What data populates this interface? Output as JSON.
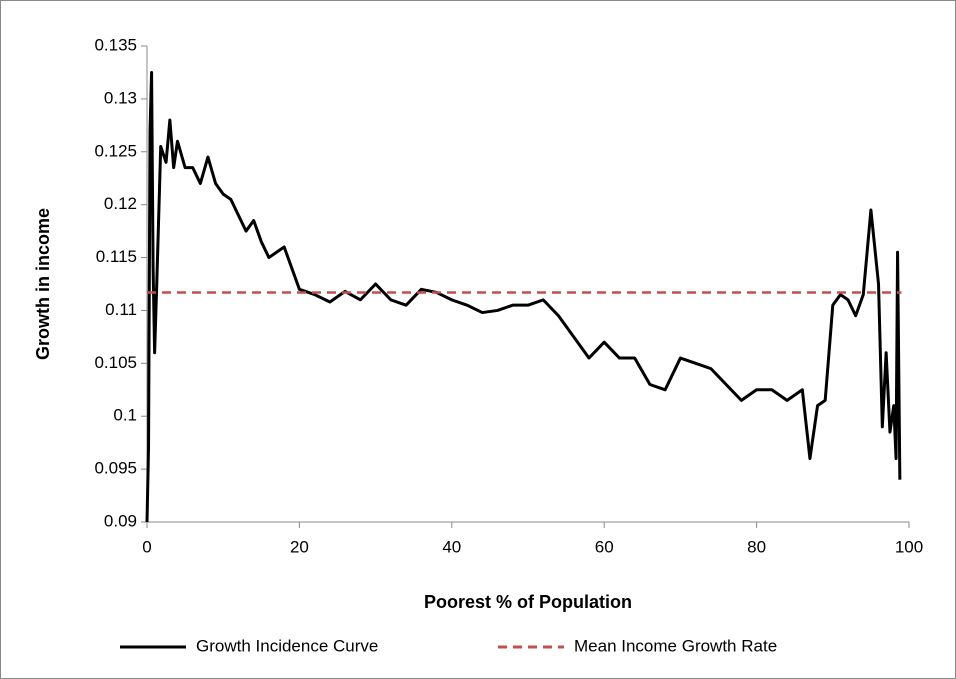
{
  "chart_data": {
    "type": "line",
    "x_label": "Poorest % of Population",
    "y_label": "Growth in income",
    "xlim": [
      0,
      100
    ],
    "xticks": [
      0,
      20,
      40,
      60,
      80,
      100
    ],
    "ylim": [
      0.09,
      0.135
    ],
    "yticks": [
      0.09,
      0.095,
      0.1,
      0.105,
      0.11,
      0.115,
      0.12,
      0.125,
      0.13,
      0.135
    ],
    "legend": "bottom",
    "series": [
      {
        "name": "Growth Incidence Curve",
        "color": "#000000",
        "style": "solid",
        "x": [
          0,
          0.2,
          0.4,
          0.6,
          0.8,
          1.0,
          1.3,
          1.8,
          2.5,
          3,
          3.5,
          4,
          5,
          6,
          7,
          8,
          9,
          10,
          11,
          12,
          13,
          14,
          15,
          16,
          17,
          18,
          19,
          20,
          22,
          24,
          26,
          28,
          30,
          32,
          34,
          36,
          38,
          40,
          42,
          44,
          46,
          48,
          50,
          52,
          54,
          56,
          58,
          60,
          62,
          64,
          66,
          68,
          70,
          72,
          74,
          76,
          78,
          80,
          82,
          84,
          86,
          87,
          88,
          89,
          90,
          91,
          92,
          93,
          94,
          95,
          96,
          96.5,
          97,
          97.5,
          98,
          98.3,
          98.5,
          98.8
        ],
        "values": [
          0.09,
          0.097,
          0.127,
          0.1325,
          0.114,
          0.106,
          0.113,
          0.1255,
          0.124,
          0.128,
          0.1235,
          0.126,
          0.1235,
          0.1235,
          0.122,
          0.1245,
          0.122,
          0.121,
          0.1205,
          0.119,
          0.1175,
          0.1185,
          0.1165,
          0.115,
          0.1155,
          0.116,
          0.114,
          0.112,
          0.1115,
          0.1108,
          0.1118,
          0.111,
          0.1125,
          0.111,
          0.1105,
          0.112,
          0.1117,
          0.111,
          0.1105,
          0.1098,
          0.11,
          0.1105,
          0.1105,
          0.111,
          0.1095,
          0.1075,
          0.1055,
          0.107,
          0.1055,
          0.1055,
          0.103,
          0.1025,
          0.1055,
          0.105,
          0.1045,
          0.103,
          0.1015,
          0.1025,
          0.1025,
          0.1015,
          0.1025,
          0.096,
          0.101,
          0.1015,
          0.1105,
          0.1115,
          0.111,
          0.1095,
          0.1115,
          0.1195,
          0.1125,
          0.099,
          0.106,
          0.0985,
          0.101,
          0.096,
          0.1155,
          0.094
        ]
      },
      {
        "name": "Mean Income Growth Rate",
        "color": "#c0504d",
        "style": "dashed",
        "x": [
          0,
          99
        ],
        "values": [
          0.1117,
          0.1117
        ]
      }
    ]
  }
}
